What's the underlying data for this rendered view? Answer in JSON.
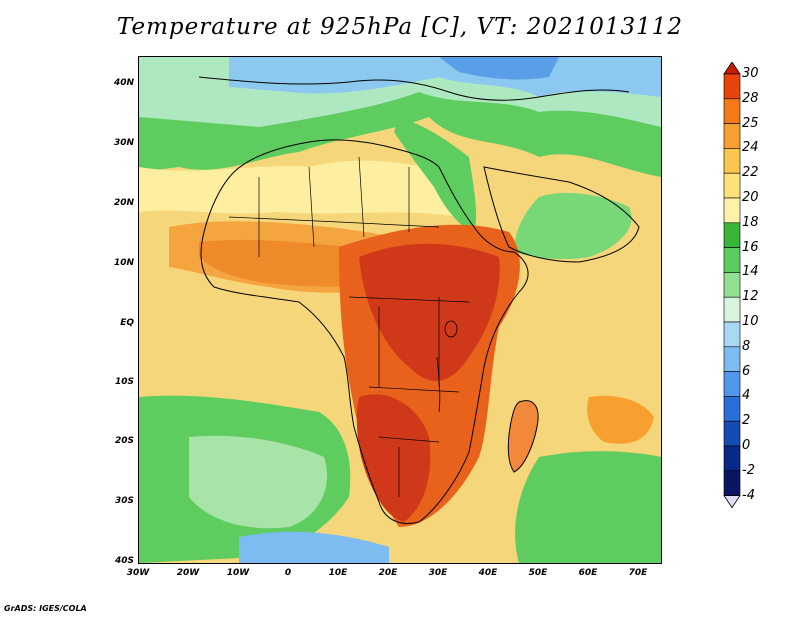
{
  "title": "Temperature at 925hPa [C], VT: 2021013112",
  "credit": "GrADS: IGES/COLA",
  "lat_ticks": [
    "40N",
    "30N",
    "20N",
    "10N",
    "EQ",
    "10S",
    "20S",
    "30S",
    "40S"
  ],
  "lon_ticks": [
    "30W",
    "20W",
    "10W",
    "0",
    "10E",
    "20E",
    "30E",
    "40E",
    "50E",
    "60E",
    "70E"
  ],
  "colorbar": {
    "labels": [
      "30",
      "28",
      "25",
      "24",
      "22",
      "20",
      "18",
      "16",
      "14",
      "12",
      "10",
      "8",
      "6",
      "4",
      "2",
      "0",
      "-2",
      "-4"
    ],
    "colors": [
      "#c81e00",
      "#e8440c",
      "#f27a1a",
      "#f7a030",
      "#fac650",
      "#fde27a",
      "#fdf2a8",
      "#38b438",
      "#5ccc5c",
      "#92e092",
      "#d8f4e0",
      "#a8d8f4",
      "#7cbcf0",
      "#5098ec",
      "#2a6ed8",
      "#144cb4",
      "#08288a",
      "#0a1460",
      "#e0dcf8"
    ]
  }
}
